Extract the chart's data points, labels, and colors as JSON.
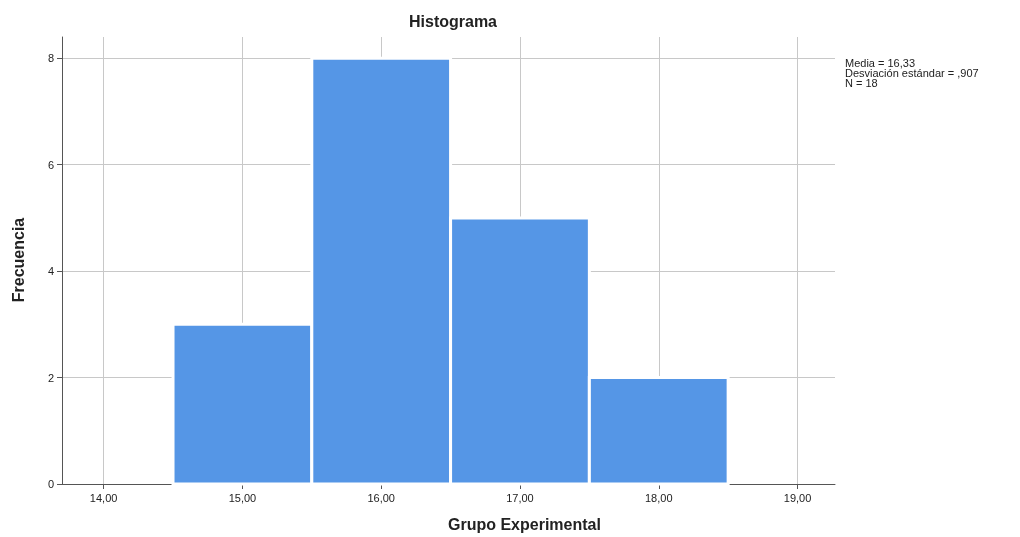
{
  "chart_data": {
    "type": "histogram",
    "title": "Histograma",
    "xlabel": "Grupo Experimental",
    "ylabel": "Frecuencia",
    "bins": [
      14.5,
      15.5,
      16.5,
      17.5,
      18.5
    ],
    "values": [
      3,
      8,
      5,
      2
    ],
    "color": "#5596e6",
    "xlim": [
      13.7,
      19.27
    ],
    "ylim": [
      0,
      8.4
    ],
    "xticks": [
      {
        "value": 14,
        "label": "14,00"
      },
      {
        "value": 15,
        "label": "15,00"
      },
      {
        "value": 16,
        "label": "16,00"
      },
      {
        "value": 17,
        "label": "17,00"
      },
      {
        "value": 18,
        "label": "18,00"
      },
      {
        "value": 19,
        "label": "19,00"
      }
    ],
    "yticks": [
      0,
      2,
      4,
      6,
      8
    ],
    "grid": true,
    "annotations": [
      "Media = 16,33",
      "Desviación estándar = ,907",
      "N = 18"
    ]
  }
}
